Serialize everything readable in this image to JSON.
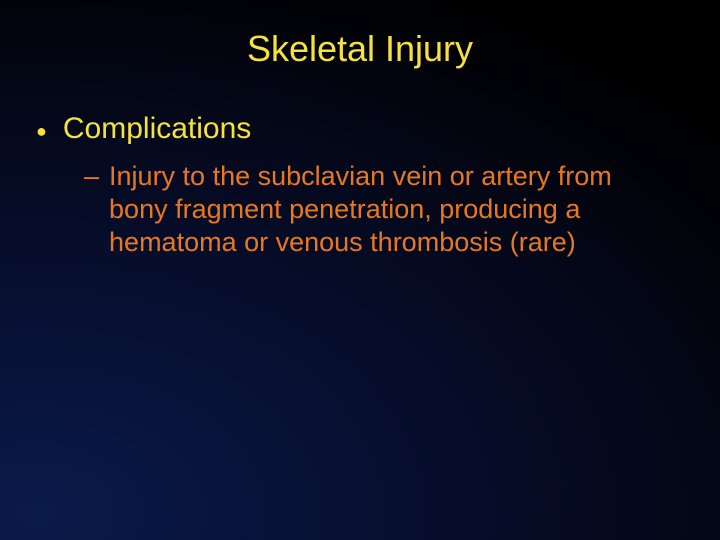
{
  "slide": {
    "title": "Skeletal Injury",
    "title_color": "#f7e23c",
    "title_fontsize": 36,
    "bullets_l1": [
      {
        "text": "Complications",
        "color": "#f7e23c",
        "fontsize": 30
      }
    ],
    "bullets_l2": [
      {
        "text": "Injury to the subclavian vein or artery from bony fragment penetration, producing a hematoma or venous thrombosis (rare)",
        "color": "#e8781f",
        "fontsize": 27
      }
    ],
    "background": {
      "type": "radial-gradient",
      "center": "bottom-left",
      "inner_color": "#0a1a4a",
      "outer_color": "#000000"
    }
  }
}
